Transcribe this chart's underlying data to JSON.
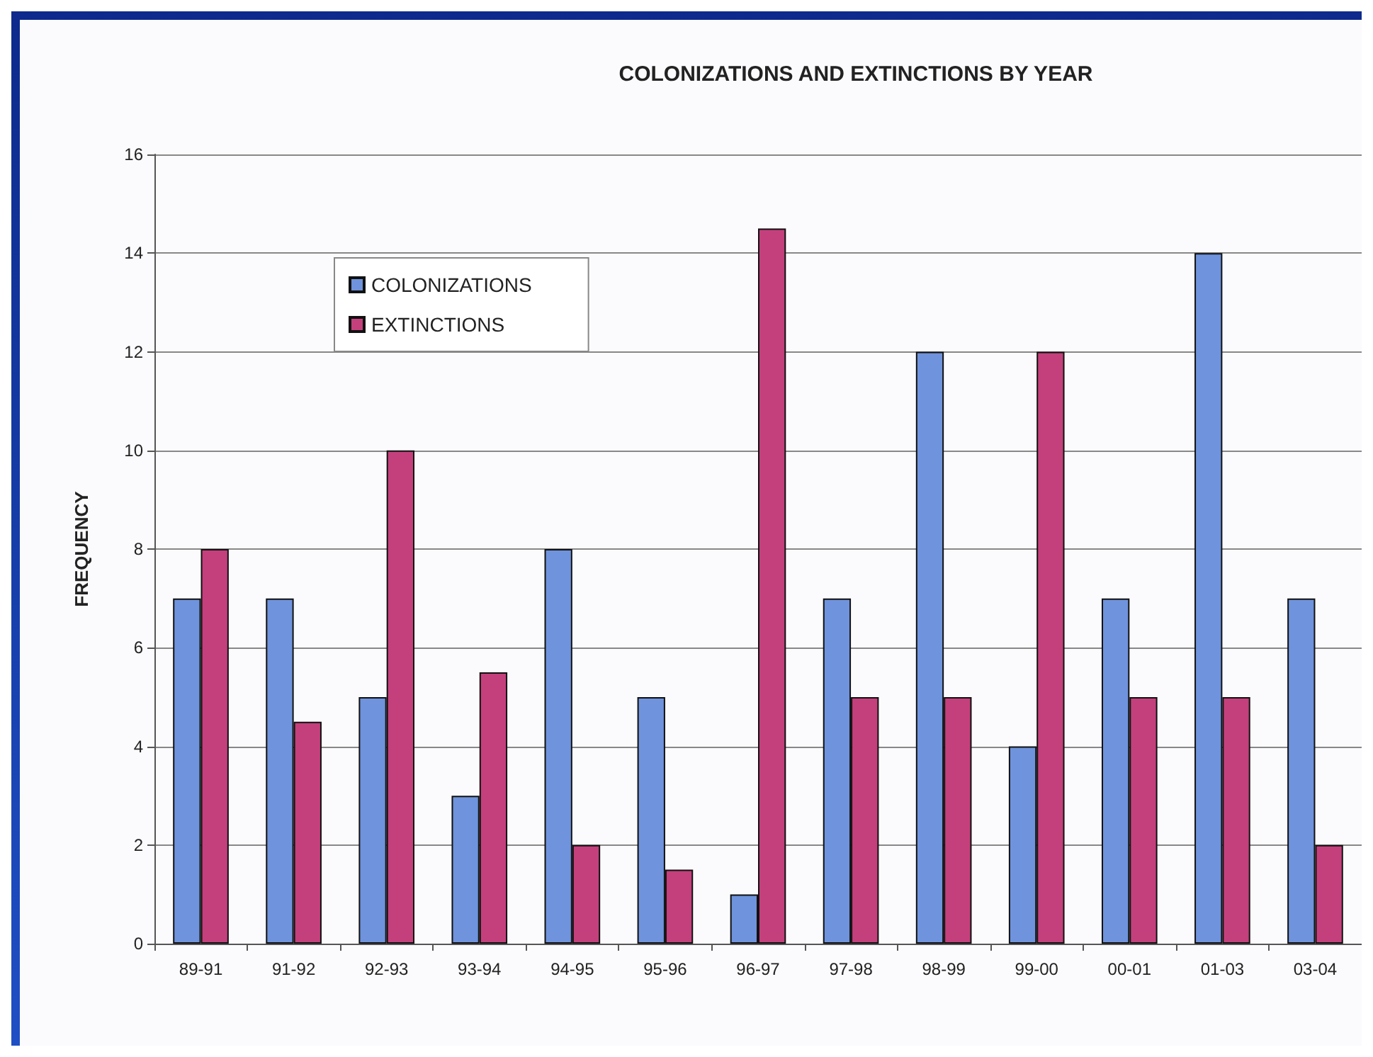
{
  "chart_data": {
    "type": "bar",
    "title": "COLONIZATIONS AND EXTINCTIONS BY YEAR",
    "ylabel": "FREQUENCY",
    "categories": [
      "89-91",
      "91-92",
      "92-93",
      "93-94",
      "94-95",
      "95-96",
      "96-97",
      "97-98",
      "98-99",
      "99-00",
      "00-01",
      "01-03",
      "03-04"
    ],
    "series": [
      {
        "name": "COLONIZATIONS",
        "color": "#6f93dc",
        "values": [
          7,
          7,
          5,
          3,
          8,
          5,
          1,
          7,
          12,
          4,
          7,
          14,
          7
        ]
      },
      {
        "name": "EXTINCTIONS",
        "color": "#c4407c",
        "values": [
          8,
          4.5,
          10,
          5.5,
          2,
          1.5,
          14.5,
          5,
          5,
          12,
          5,
          5,
          2
        ]
      }
    ],
    "ylim": [
      0,
      16
    ],
    "yticks": [
      0,
      2,
      4,
      6,
      8,
      10,
      12,
      14,
      16
    ],
    "grid": "y",
    "legend": "top left"
  }
}
